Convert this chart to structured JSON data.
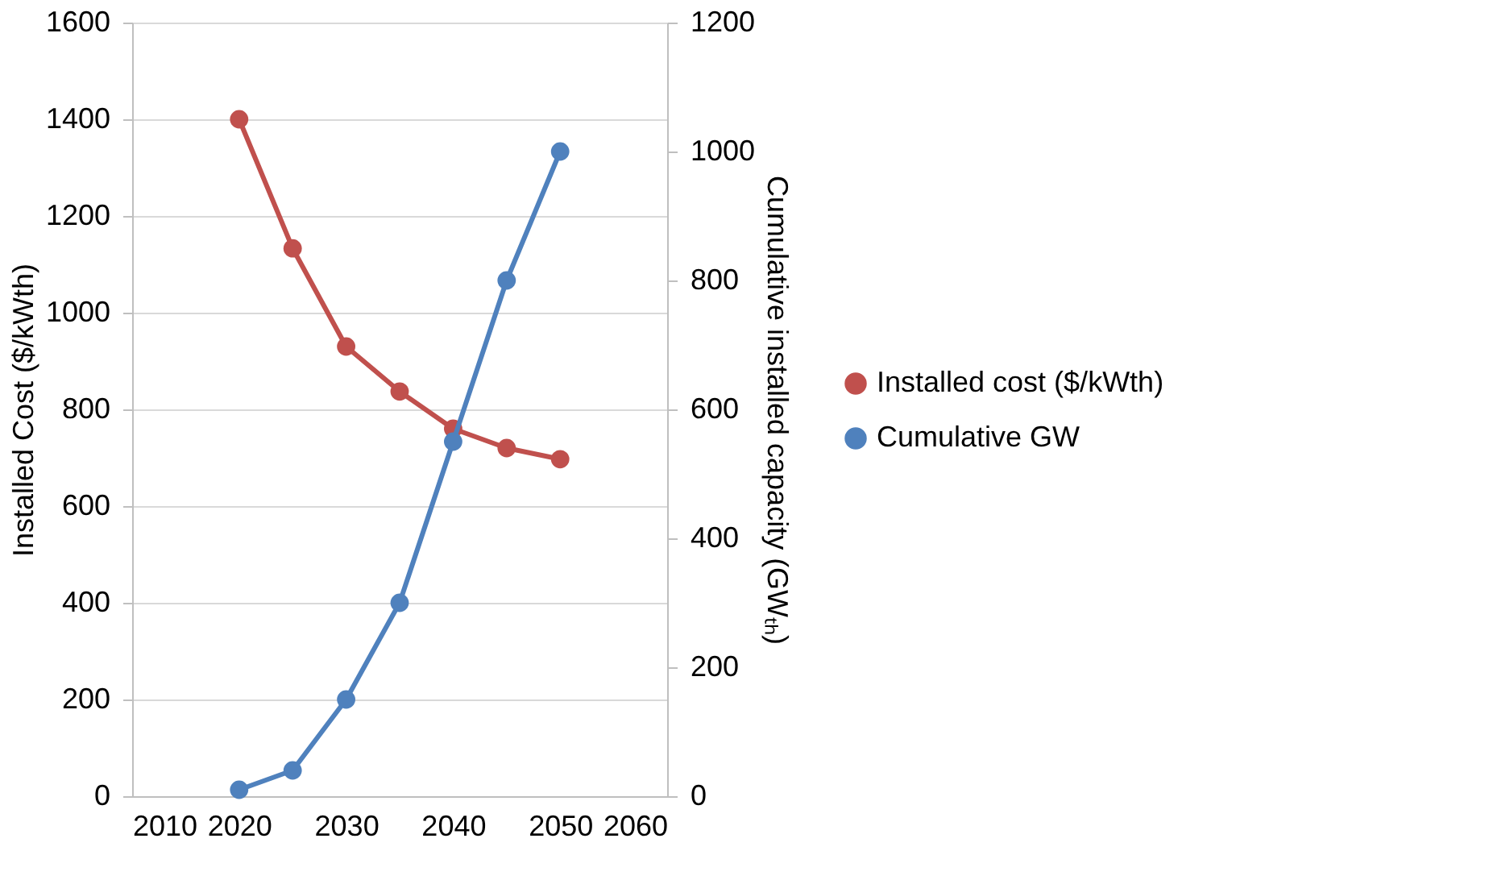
{
  "chart_data": {
    "type": "line",
    "xlabel": null,
    "ylabel": "Installed Cost ($/kWth)",
    "y2label": "Cumulative installed capacity (GWₜₕ)",
    "x": [
      2020,
      2025,
      2030,
      2035,
      2040,
      2045,
      2050
    ],
    "series": [
      {
        "name": "Installed cost ($/kWth)",
        "color": "#c0504d",
        "values": [
          1400,
          1133,
          930,
          837,
          760,
          720,
          697
        ]
      },
      {
        "name": "Cumulative GW",
        "color": "#4f81bd",
        "axis": "y2",
        "values": [
          10,
          40,
          150,
          300,
          550,
          800,
          1000
        ]
      }
    ],
    "xlim": [
      2010,
      2060
    ],
    "xticks": [
      2010,
      2020,
      2030,
      2040,
      2050,
      2060
    ],
    "ylim": [
      0,
      1600
    ],
    "yticks": [
      0,
      200,
      400,
      600,
      800,
      1000,
      1200,
      1400,
      1600
    ],
    "y2lim": [
      0,
      1200
    ],
    "y2ticks": [
      0,
      200,
      400,
      600,
      800,
      1000,
      1200
    ],
    "grid": "y",
    "legend": "right",
    "marker": "circle",
    "line_style": "solid"
  }
}
